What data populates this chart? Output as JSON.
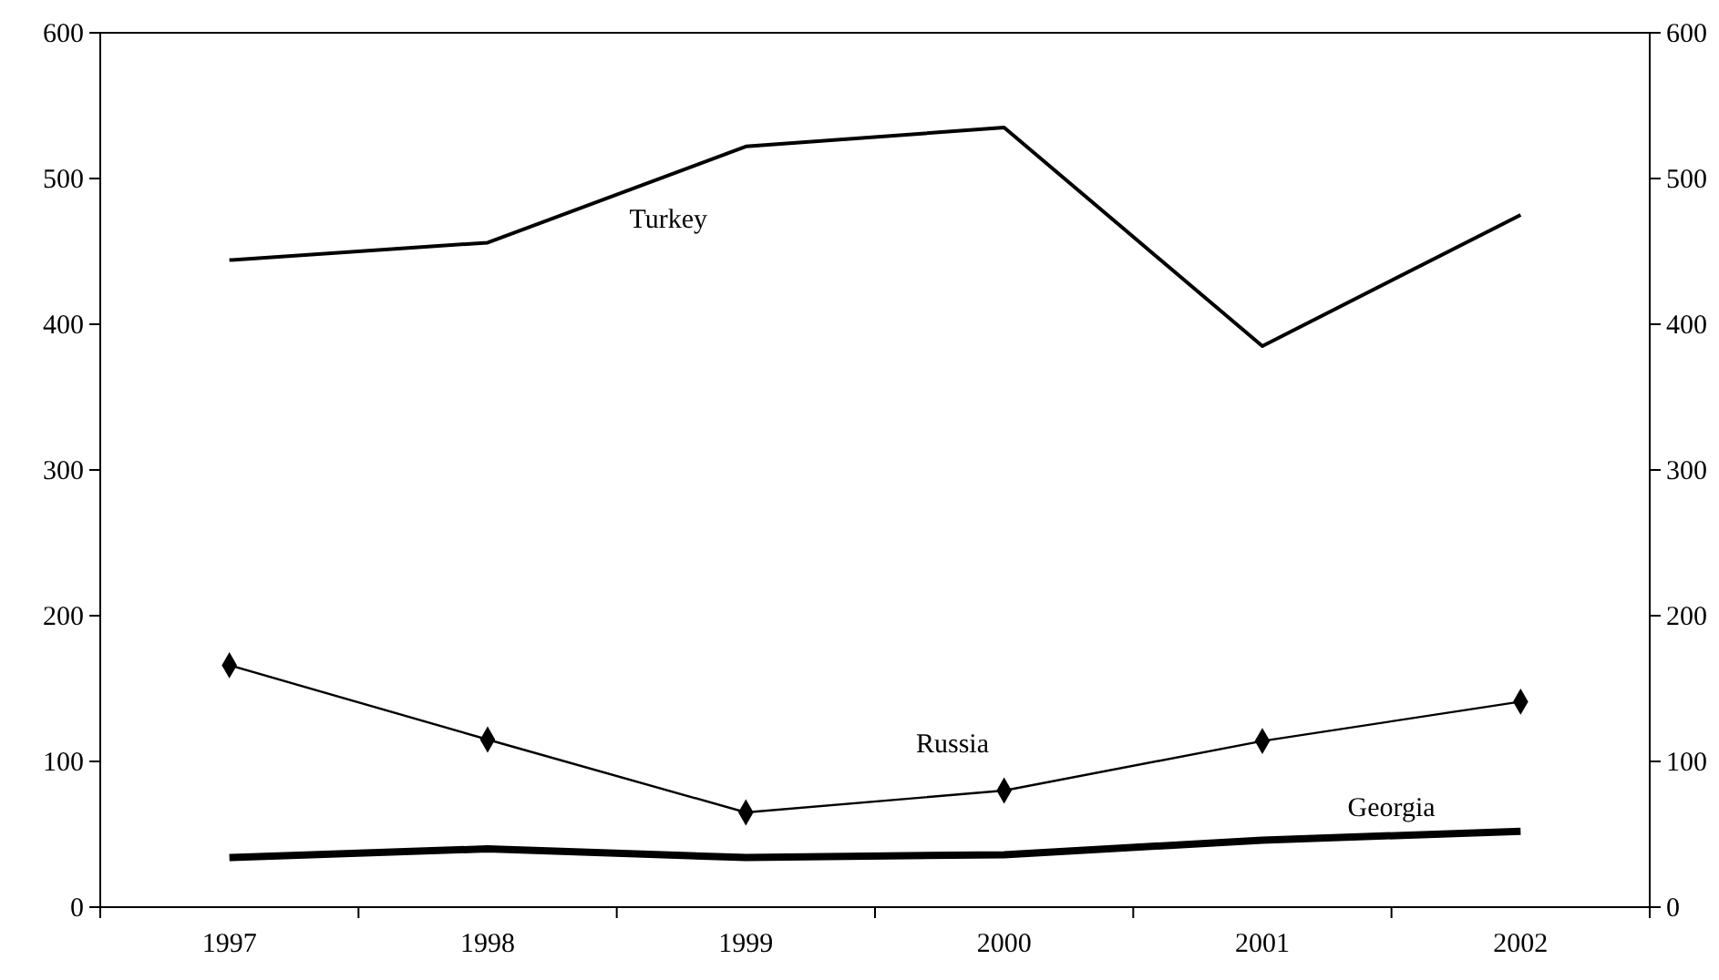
{
  "chart_data": {
    "type": "line",
    "categories": [
      "1997",
      "1998",
      "1999",
      "2000",
      "2001",
      "2002"
    ],
    "series": [
      {
        "name": "Turkey",
        "color": "#000000",
        "values": [
          444,
          456,
          522,
          535,
          385,
          475
        ],
        "marker": "none"
      },
      {
        "name": "Russia",
        "color": "#000000",
        "values": [
          166,
          115,
          65,
          80,
          114,
          141
        ],
        "marker": "diamond"
      },
      {
        "name": "Georgia",
        "color": "#000000",
        "values": [
          34,
          40,
          34,
          36,
          46,
          52
        ],
        "marker": "none"
      }
    ],
    "ylim": [
      0,
      600
    ],
    "yticks": [
      0,
      100,
      200,
      300,
      400,
      500,
      600
    ],
    "y2lim": [
      0,
      600
    ],
    "y2ticks": [
      0,
      100,
      200,
      300,
      400,
      500,
      600
    ],
    "grid": false,
    "line_style": "solid"
  }
}
